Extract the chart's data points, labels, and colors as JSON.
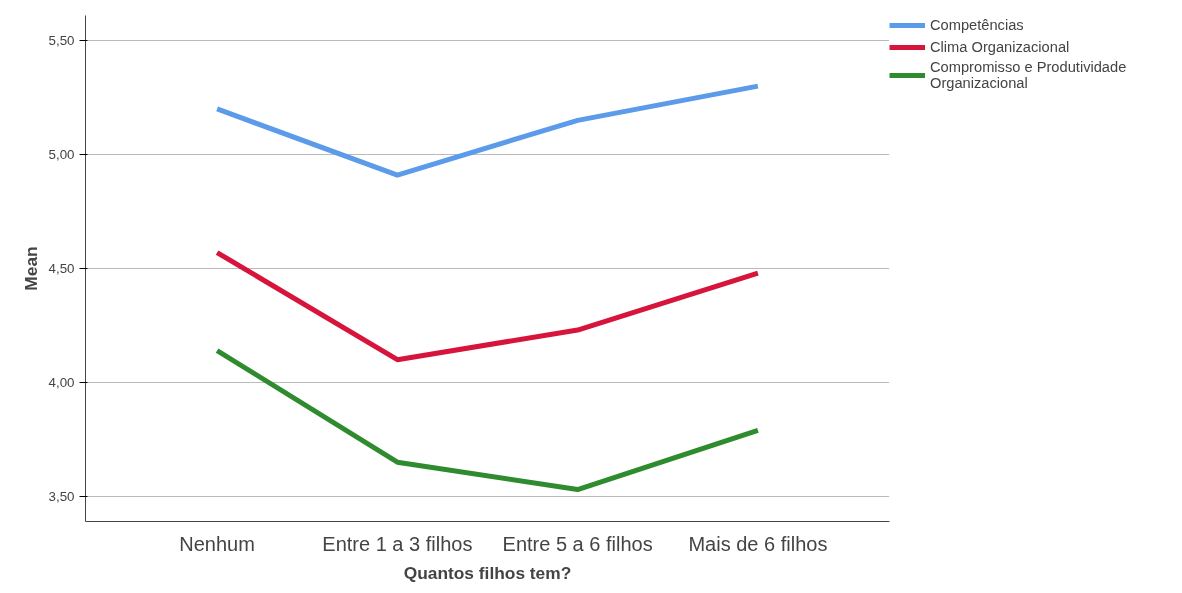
{
  "chart_data": {
    "type": "line",
    "xlabel": "Quantos filhos tem?",
    "ylabel": "Mean",
    "categories": [
      "Nenhum",
      "Entre 1 a 3 filhos",
      "Entre 5 a 6 filhos",
      "Mais de 6 filhos"
    ],
    "series": [
      {
        "name": "Competências",
        "color": "#5b9bea",
        "values": [
          5.2,
          4.91,
          5.15,
          5.3
        ]
      },
      {
        "name": "Clima Organizacional",
        "color": "#d7143c",
        "values": [
          4.57,
          4.1,
          4.23,
          4.48
        ]
      },
      {
        "name": "Compromisso e Produtividade Organizacional",
        "color": "#2e8b2e",
        "values": [
          4.14,
          3.65,
          3.53,
          3.79
        ]
      }
    ],
    "ylim": [
      3.39,
      5.61
    ],
    "yticks": [
      {
        "value": 3.5,
        "label": "3,50"
      },
      {
        "value": 4.0,
        "label": "4,00"
      },
      {
        "value": 4.5,
        "label": "4,50"
      },
      {
        "value": 5.0,
        "label": "5,00"
      },
      {
        "value": 5.5,
        "label": "5,50"
      }
    ],
    "grid": "y",
    "legend": "top right",
    "marker": "none",
    "line_style": "solid"
  }
}
